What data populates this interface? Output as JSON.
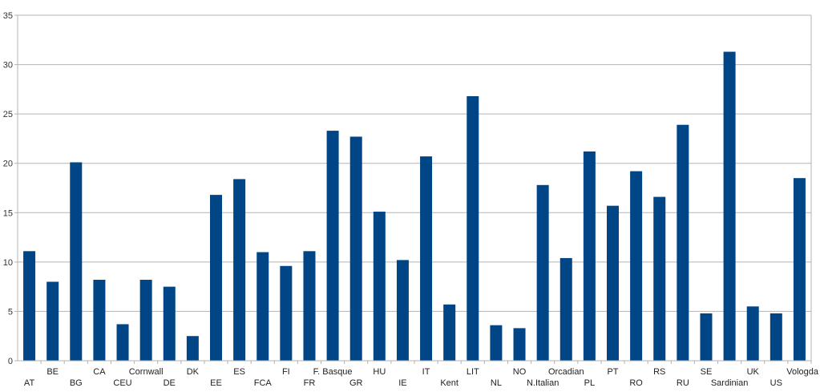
{
  "chart_data": {
    "type": "bar",
    "title": "",
    "xlabel": "",
    "ylabel": "",
    "ylim": [
      0,
      35
    ],
    "yticks": [
      0,
      5,
      10,
      15,
      20,
      25,
      30,
      35
    ],
    "grid": true,
    "legend": "none",
    "bar_color": "#004586",
    "categories": [
      "AT",
      "BE",
      "BG",
      "CA",
      "CEU",
      "Cornwall",
      "DE",
      "DK",
      "EE",
      "ES",
      "FCA",
      "FI",
      "FR",
      "F. Basque",
      "GR",
      "HU",
      "IE",
      "IT",
      "Kent",
      "LIT",
      "NL",
      "NO",
      "N.Italian",
      "Orcadian",
      "PL",
      "PT",
      "RO",
      "RS",
      "RU",
      "SE",
      "Sardinian",
      "UK",
      "US",
      "Vologda"
    ],
    "values": [
      11.1,
      8.0,
      20.1,
      8.2,
      3.7,
      8.2,
      7.5,
      2.5,
      16.8,
      18.4,
      11.0,
      9.6,
      11.1,
      23.3,
      22.7,
      15.1,
      10.2,
      20.7,
      5.7,
      26.8,
      3.6,
      3.3,
      17.8,
      10.4,
      21.2,
      15.7,
      19.2,
      16.6,
      23.9,
      4.8,
      31.3,
      5.5,
      4.8,
      18.5
    ]
  }
}
